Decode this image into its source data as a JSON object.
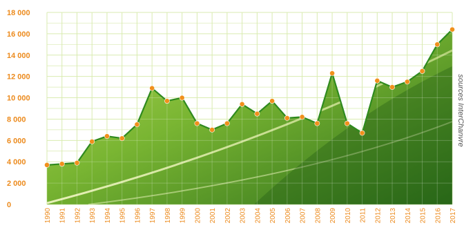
{
  "chart_data": {
    "type": "area",
    "title": "",
    "xlabel": "",
    "ylabel": "",
    "x": [
      "1990",
      "1991",
      "1992",
      "1993",
      "1994",
      "1995",
      "1996",
      "1997",
      "1998",
      "1999",
      "2000",
      "2001",
      "2002",
      "2003",
      "2004",
      "2005",
      "2006",
      "2007",
      "2008",
      "2009",
      "2010",
      "2011",
      "2012",
      "2013",
      "2014",
      "2015",
      "2016",
      "2017"
    ],
    "series": [
      {
        "values": [
          3700,
          3800,
          3900,
          5900,
          6400,
          6200,
          7500,
          10900,
          9700,
          10000,
          7600,
          7000,
          7600,
          9400,
          8500,
          9700,
          8100,
          8200,
          7600,
          12300,
          7600,
          6700,
          11600,
          11000,
          11500,
          12500,
          15000,
          16400
        ]
      }
    ],
    "ylim": [
      0,
      18000
    ],
    "yticks": [
      "18 000",
      "16 000",
      "14 000",
      "12 000",
      "10 000",
      "8 000",
      "6 000",
      "4 000",
      "2 000",
      "0"
    ],
    "grid": true,
    "source_note": "sources InterChanvre",
    "colors": {
      "tick_text": "#ec8a1c",
      "line": "#2f8a1e",
      "marker": "#f0901c",
      "grid": "#d9ebb0",
      "fill": "#7fb934"
    }
  }
}
